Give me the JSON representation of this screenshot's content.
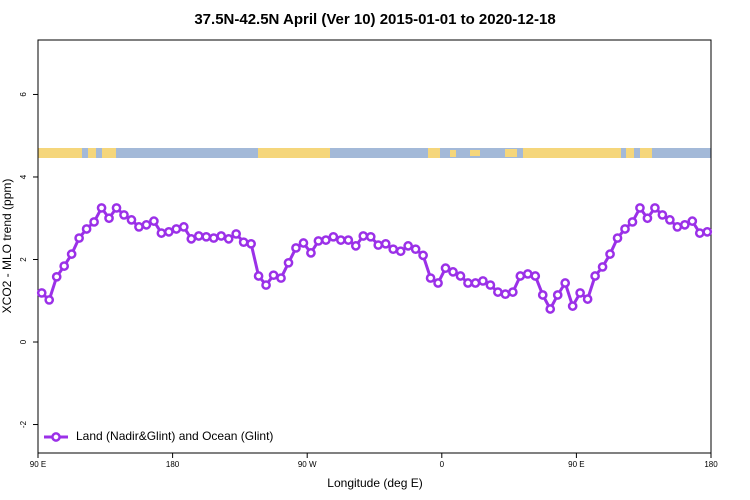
{
  "chart_data": {
    "type": "line",
    "title": "37.5N-42.5N April (Ver 10)   2015-01-01 to 2020-12-18",
    "x_label": "Longitude (deg E)",
    "y_label": "XCO2 - MLO trend (ppm)",
    "x": [
      92.5,
      97.5,
      102.5,
      107.5,
      112.5,
      117.5,
      122.5,
      127.5,
      132.5,
      137.5,
      142.5,
      147.5,
      152.5,
      157.5,
      162.5,
      167.5,
      172.5,
      177.5,
      182.5,
      187.5,
      192.5,
      197.5,
      202.5,
      207.5,
      212.5,
      217.5,
      222.5,
      227.5,
      232.5,
      237.5,
      242.5,
      247.5,
      252.5,
      257.5,
      262.5,
      267.5,
      272.5,
      277.5,
      282.5,
      287.5,
      292.5,
      297.5,
      302.5,
      307.5,
      312.5,
      317.5,
      322.5,
      327.5,
      332.5,
      337.5,
      342.5,
      347.5,
      352.5,
      357.5,
      362.5,
      367.5,
      372.5,
      377.5,
      382.5,
      387.5,
      392.5,
      397.5,
      402.5,
      407.5,
      412.5,
      417.5,
      422.5,
      427.5,
      432.5,
      437.5,
      442.5,
      447.5,
      452.5,
      457.5,
      462.5,
      467.5,
      472.5,
      477.5,
      482.5,
      487.5,
      492.5,
      497.5,
      502.5,
      507.5,
      512.5,
      517.5,
      522.5,
      527.5,
      532.5,
      537.5
    ],
    "series": [
      {
        "name": "Land (Nadir&Glint) and Ocean (Glint)",
        "color": "#9b30e8",
        "values": [
          1.19,
          1.02,
          1.58,
          1.84,
          2.13,
          2.52,
          2.74,
          2.91,
          3.25,
          3.0,
          3.25,
          3.08,
          2.96,
          2.79,
          2.84,
          2.93,
          2.64,
          2.67,
          2.74,
          2.79,
          2.5,
          2.57,
          2.55,
          2.52,
          2.57,
          2.5,
          2.62,
          2.42,
          2.38,
          1.6,
          1.38,
          1.62,
          1.55,
          1.92,
          2.28,
          2.4,
          2.16,
          2.45,
          2.47,
          2.55,
          2.47,
          2.47,
          2.33,
          2.57,
          2.55,
          2.35,
          2.38,
          2.25,
          2.2,
          2.33,
          2.25,
          2.1,
          1.55,
          1.43,
          1.79,
          1.7,
          1.6,
          1.43,
          1.43,
          1.48,
          1.38,
          1.21,
          1.16,
          1.21,
          1.6,
          1.65,
          1.6,
          1.14,
          0.8,
          1.14,
          1.43,
          0.87,
          1.19,
          1.04,
          1.6,
          1.82,
          2.13,
          2.52,
          2.74,
          2.91,
          3.25,
          3.0,
          3.25,
          3.08,
          2.96,
          2.79,
          2.84,
          2.93,
          2.64,
          2.67
        ]
      }
    ],
    "xlim": [
      90,
      540
    ],
    "xticks": [
      {
        "value": 90,
        "label": "90 E"
      },
      180,
      {
        "value": 270,
        "label": "90 W"
      },
      {
        "value": 360,
        "label": "0"
      },
      {
        "value": 450,
        "label": "90 E"
      },
      {
        "value": 540,
        "label": "180"
      }
    ],
    "ylim": [
      -2.69,
      7.32
    ],
    "yticks": [
      -2,
      0,
      2,
      4,
      6
    ],
    "grid": false,
    "legend": "bottomleft"
  }
}
